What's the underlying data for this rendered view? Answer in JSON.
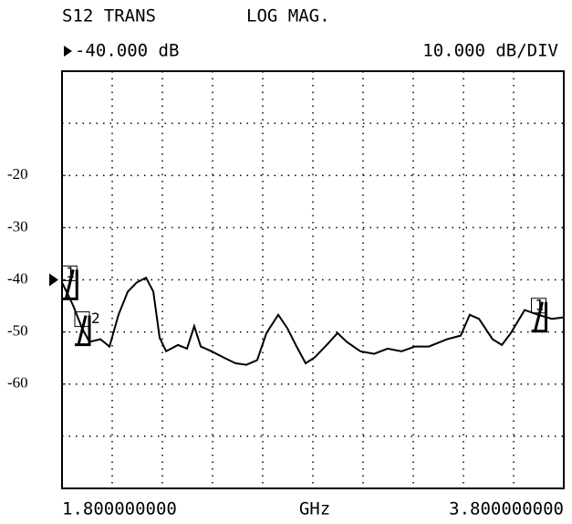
{
  "chart_data": {
    "type": "line",
    "title": "S12 TRANS",
    "subtitle": "LOG MAG.",
    "reference": {
      "value": -40,
      "label": "-40.000 dB"
    },
    "scale_label": "10.000 dB/DIV",
    "x_unit": "GHz",
    "xlim": [
      1.8,
      3.8
    ],
    "xticks": [
      {
        "value": 1.8,
        "label": "1.800000000"
      },
      {
        "value": 3.8,
        "label": "3.800000000"
      }
    ],
    "ylim": [
      -80,
      0
    ],
    "yticks": [
      -20,
      -30,
      -40,
      -50,
      -60
    ],
    "grid": true,
    "series": [
      {
        "color": "#000000",
        "x": [
          1.8,
          1.844,
          1.88,
          1.909,
          1.953,
          1.989,
          2.025,
          2.062,
          2.098,
          2.135,
          2.164,
          2.189,
          2.215,
          2.262,
          2.298,
          2.327,
          2.353,
          2.396,
          2.444,
          2.491,
          2.535,
          2.578,
          2.615,
          2.662,
          2.698,
          2.735,
          2.771,
          2.807,
          2.855,
          2.898,
          2.935,
          2.989,
          3.044,
          3.098,
          3.153,
          3.207,
          3.262,
          3.335,
          3.389,
          3.425,
          3.462,
          3.516,
          3.553,
          3.589,
          3.644,
          3.698,
          3.753,
          3.8
        ],
        "values": [
          -40.5,
          -44.9,
          -49.3,
          -51.9,
          -51.4,
          -52.8,
          -46.7,
          -42.3,
          -40.5,
          -39.6,
          -42.3,
          -51.1,
          -53.7,
          -52.5,
          -53.2,
          -48.9,
          -52.8,
          -53.7,
          -54.9,
          -56.0,
          -56.3,
          -55.4,
          -50.2,
          -46.7,
          -49.3,
          -52.8,
          -56.0,
          -54.9,
          -52.5,
          -50.2,
          -51.9,
          -53.7,
          -54.2,
          -53.2,
          -53.7,
          -52.8,
          -52.8,
          -51.4,
          -50.7,
          -46.7,
          -47.5,
          -51.4,
          -52.5,
          -50.2,
          -45.8,
          -46.7,
          -47.5,
          -47.2
        ]
      }
    ],
    "markers": [
      {
        "label": "1",
        "x": 1.83,
        "y": -40.5
      },
      {
        "label": "2",
        "x": 1.88,
        "y": -49.3
      },
      {
        "label": "1",
        "x": 3.7,
        "y": -46.7
      }
    ]
  }
}
